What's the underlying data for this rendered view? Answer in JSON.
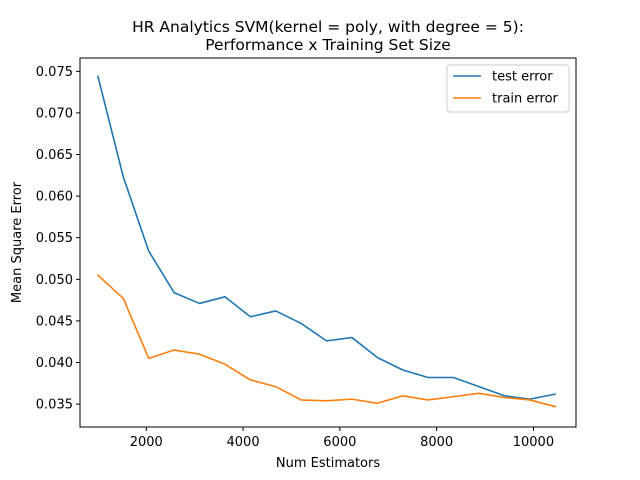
{
  "chart_data": {
    "type": "line",
    "title": "HR Analytics SVM(kernel = poly, with degree = 5):",
    "subtitle": "Performance x Training Set Size",
    "xlabel": "Num Estimators",
    "ylabel": "Mean Square Error",
    "xlim": [
      630,
      10880
    ],
    "ylim": [
      0.03225,
      0.0766
    ],
    "x_ticks": [
      2000,
      4000,
      6000,
      8000,
      10000
    ],
    "y_ticks": [
      0.035,
      0.04,
      0.045,
      0.05,
      0.055,
      0.06,
      0.065,
      0.07,
      0.075
    ],
    "x_tick_labels": [
      "2000",
      "4000",
      "6000",
      "8000",
      "10000"
    ],
    "y_tick_labels": [
      "0.035",
      "0.040",
      "0.045",
      "0.050",
      "0.055",
      "0.060",
      "0.065",
      "0.070",
      "0.075"
    ],
    "grid": false,
    "legend_position": "top-right",
    "x": [
      1000,
      1525,
      2050,
      2575,
      3100,
      3625,
      4150,
      4675,
      5200,
      5725,
      6250,
      6775,
      7300,
      7825,
      8350,
      8875,
      9400,
      9925,
      10450
    ],
    "series": [
      {
        "name": "test error",
        "color": "#1f77b4",
        "values": [
          0.0744,
          0.0623,
          0.0534,
          0.0484,
          0.0471,
          0.0479,
          0.0455,
          0.0462,
          0.0447,
          0.0426,
          0.043,
          0.0406,
          0.0391,
          0.0382,
          0.0382,
          0.0371,
          0.036,
          0.0356,
          0.0362
        ]
      },
      {
        "name": "train error",
        "color": "#ff7f0e",
        "values": [
          0.0505,
          0.0477,
          0.0405,
          0.0415,
          0.041,
          0.0398,
          0.0379,
          0.0371,
          0.0355,
          0.0354,
          0.0356,
          0.0351,
          0.036,
          0.0355,
          0.0359,
          0.0363,
          0.0358,
          0.0355,
          0.0347
        ]
      }
    ]
  }
}
